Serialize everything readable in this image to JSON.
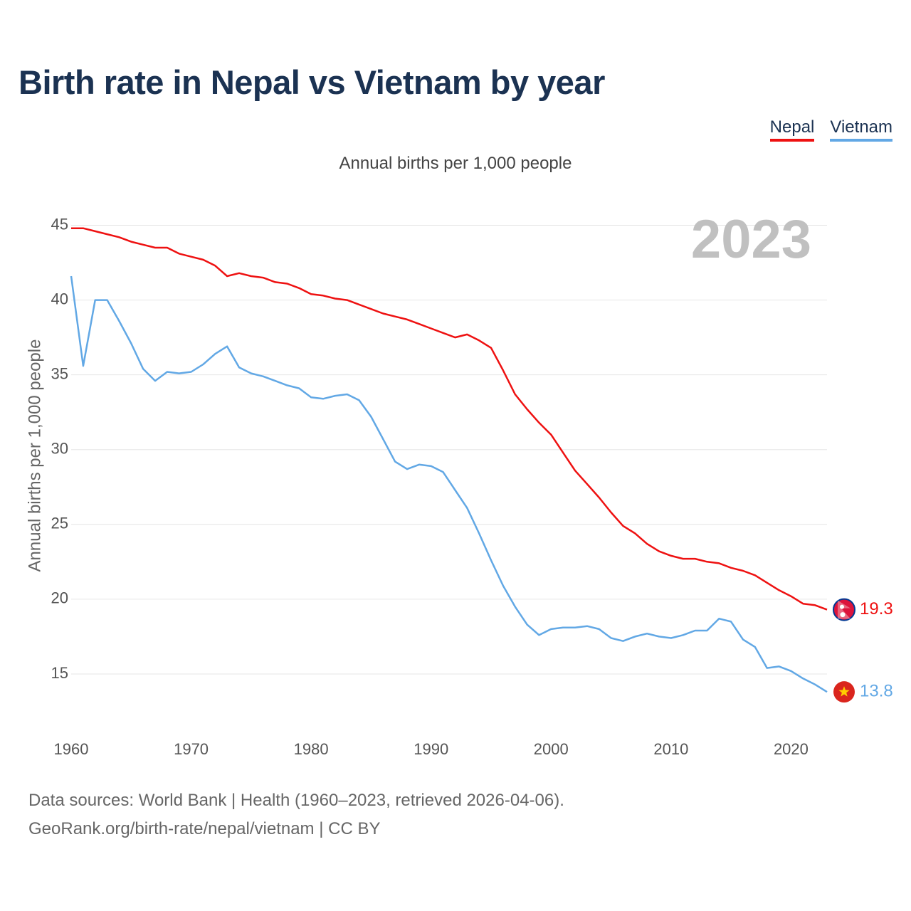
{
  "title": "Birth rate in Nepal vs Vietnam by year",
  "subtitle": "Annual births per 1,000 people",
  "legend": [
    {
      "label": "Nepal",
      "color": "#ee1111"
    },
    {
      "label": "Vietnam",
      "color": "#62a8e5"
    }
  ],
  "source_line1": "Data sources: World Bank | Health (1960–2023, retrieved 2026-04-06).",
  "source_line2": "GeoRank.org/birth-rate/nepal/vietnam | CC BY",
  "chart_data": {
    "type": "line",
    "title": "Birth rate in Nepal vs Vietnam by year",
    "ylabel": "Annual births per 1,000 people",
    "xlabel": "",
    "year_marker": "2023",
    "x": [
      1960,
      1961,
      1962,
      1963,
      1964,
      1965,
      1966,
      1967,
      1968,
      1969,
      1970,
      1971,
      1972,
      1973,
      1974,
      1975,
      1976,
      1977,
      1978,
      1979,
      1980,
      1981,
      1982,
      1983,
      1984,
      1985,
      1986,
      1987,
      1988,
      1989,
      1990,
      1991,
      1992,
      1993,
      1994,
      1995,
      1996,
      1997,
      1998,
      1999,
      2000,
      2001,
      2002,
      2003,
      2004,
      2005,
      2006,
      2007,
      2008,
      2009,
      2010,
      2011,
      2012,
      2013,
      2014,
      2015,
      2016,
      2017,
      2018,
      2019,
      2020,
      2021,
      2022,
      2023
    ],
    "xlim": [
      1960,
      2023
    ],
    "ylim": [
      12,
      46.5
    ],
    "xticks": [
      1960,
      1970,
      1980,
      1990,
      2000,
      2010,
      2020
    ],
    "yticks": [
      15,
      20,
      25,
      30,
      35,
      40,
      45
    ],
    "series": [
      {
        "name": "Nepal",
        "color": "#ee1111",
        "end_label": "19.3",
        "values": [
          44.8,
          44.8,
          44.6,
          44.4,
          44.2,
          43.9,
          43.7,
          43.5,
          43.5,
          43.1,
          42.9,
          42.7,
          42.3,
          41.6,
          41.8,
          41.6,
          41.5,
          41.2,
          41.1,
          40.8,
          40.4,
          40.3,
          40.1,
          40.0,
          39.7,
          39.4,
          39.1,
          38.9,
          38.7,
          38.4,
          38.1,
          37.8,
          37.5,
          37.7,
          37.3,
          36.8,
          35.3,
          33.7,
          32.7,
          31.8,
          31.0,
          29.8,
          28.6,
          27.7,
          26.8,
          25.8,
          24.9,
          24.4,
          23.7,
          23.2,
          22.9,
          22.7,
          22.7,
          22.5,
          22.4,
          22.1,
          21.9,
          21.6,
          21.1,
          20.6,
          20.2,
          19.7,
          19.6,
          19.3
        ]
      },
      {
        "name": "Vietnam",
        "color": "#62a8e5",
        "end_label": "13.8",
        "values": [
          41.6,
          35.6,
          40.0,
          40.0,
          38.6,
          37.1,
          35.4,
          34.6,
          35.2,
          35.1,
          35.2,
          35.7,
          36.4,
          36.9,
          35.5,
          35.1,
          34.9,
          34.6,
          34.3,
          34.1,
          33.5,
          33.4,
          33.6,
          33.7,
          33.3,
          32.2,
          30.7,
          29.2,
          28.7,
          29.0,
          28.9,
          28.5,
          27.3,
          26.1,
          24.4,
          22.6,
          20.9,
          19.5,
          18.3,
          17.6,
          18.0,
          18.1,
          18.1,
          18.2,
          18.0,
          17.4,
          17.2,
          17.5,
          17.7,
          17.5,
          17.4,
          17.6,
          17.9,
          17.9,
          18.7,
          18.5,
          17.3,
          16.8,
          15.4,
          15.5,
          15.2,
          14.7,
          14.3,
          13.8
        ]
      }
    ]
  }
}
